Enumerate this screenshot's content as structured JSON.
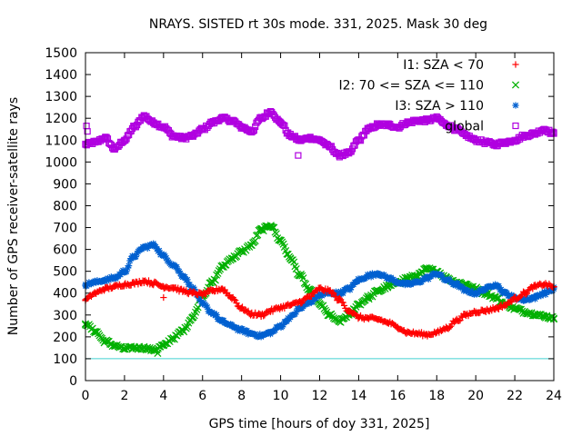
{
  "chart_data": {
    "type": "scatter",
    "title": "NRAYS. SISTED rt 30s mode. 331, 2025. Mask 30 deg",
    "xlabel": "GPS time [hours of doy 331, 2025]",
    "ylabel": "Number of GPS receiver-satellite rays",
    "xlim": [
      0,
      24
    ],
    "ylim": [
      0,
      1500
    ],
    "xticks": [
      0,
      2,
      4,
      6,
      8,
      10,
      12,
      14,
      16,
      18,
      20,
      22,
      24
    ],
    "yticks": [
      0,
      100,
      200,
      300,
      400,
      500,
      600,
      700,
      800,
      900,
      1000,
      1100,
      1200,
      1300,
      1400,
      1500
    ],
    "grid": false,
    "legend_position": "top-right",
    "reference_line": {
      "y": 100,
      "color": "#40d0d0"
    },
    "series": [
      {
        "name": "I1: SZA < 70",
        "marker": "+",
        "color": "#ff0000",
        "x": [
          0,
          0.5,
          1,
          1.5,
          2,
          2.5,
          3,
          3.5,
          4,
          4.5,
          5,
          5.5,
          6,
          6.5,
          7,
          7.5,
          8,
          8.5,
          9,
          9.5,
          10,
          10.5,
          11,
          11.5,
          12,
          12.5,
          13,
          13.5,
          14,
          14.5,
          15,
          15.5,
          16,
          16.5,
          17,
          17.5,
          18,
          18.5,
          19,
          19.5,
          20,
          20.5,
          21,
          21.5,
          22,
          22.5,
          23,
          23.5,
          24
        ],
        "values": [
          370,
          400,
          420,
          430,
          440,
          445,
          455,
          445,
          430,
          425,
          410,
          400,
          395,
          410,
          420,
          380,
          330,
          305,
          300,
          320,
          335,
          345,
          360,
          385,
          420,
          410,
          370,
          320,
          290,
          285,
          280,
          265,
          245,
          220,
          215,
          210,
          220,
          240,
          275,
          300,
          315,
          320,
          330,
          345,
          375,
          400,
          430,
          440,
          430
        ]
      },
      {
        "name": "I2: 70 <= SZA <= 110",
        "marker": "x",
        "color": "#00b000",
        "x": [
          0,
          0.5,
          1,
          1.5,
          2,
          2.5,
          3,
          3.5,
          4,
          4.5,
          5,
          5.5,
          6,
          6.5,
          7,
          7.5,
          8,
          8.5,
          9,
          9.5,
          10,
          10.5,
          11,
          11.5,
          12,
          12.5,
          13,
          13.5,
          14,
          14.5,
          15,
          15.5,
          16,
          16.5,
          17,
          17.5,
          18,
          18.5,
          19,
          19.5,
          20,
          20.5,
          21,
          21.5,
          22,
          22.5,
          23,
          23.5,
          24
        ],
        "values": [
          260,
          225,
          180,
          160,
          145,
          150,
          150,
          140,
          160,
          195,
          230,
          290,
          390,
          450,
          520,
          560,
          590,
          620,
          690,
          710,
          640,
          560,
          480,
          410,
          350,
          300,
          270,
          300,
          350,
          380,
          410,
          430,
          450,
          470,
          480,
          510,
          500,
          470,
          450,
          440,
          420,
          400,
          380,
          350,
          330,
          315,
          305,
          295,
          285
        ]
      },
      {
        "name": "I3: SZA > 110",
        "marker": "*",
        "color": "#0060d0",
        "x": [
          0,
          0.5,
          1,
          1.5,
          2,
          2.5,
          3,
          3.5,
          4,
          4.5,
          5,
          5.5,
          6,
          6.5,
          7,
          7.5,
          8,
          8.5,
          9,
          9.5,
          10,
          10.5,
          11,
          11.5,
          12,
          12.5,
          13,
          13.5,
          14,
          14.5,
          15,
          15.5,
          16,
          16.5,
          17,
          17.5,
          18,
          18.5,
          19,
          19.5,
          20,
          20.5,
          21,
          21.5,
          22,
          22.5,
          23,
          23.5,
          24
        ],
        "values": [
          440,
          450,
          460,
          470,
          500,
          570,
          610,
          620,
          570,
          530,
          480,
          420,
          350,
          310,
          270,
          250,
          230,
          215,
          205,
          220,
          250,
          290,
          330,
          360,
          390,
          400,
          400,
          420,
          460,
          480,
          490,
          470,
          450,
          440,
          450,
          470,
          490,
          460,
          440,
          410,
          400,
          420,
          440,
          400,
          380,
          370,
          380,
          400,
          420
        ]
      },
      {
        "name": "global",
        "marker": "square",
        "color": "#b000e0",
        "x": [
          0,
          0.5,
          1,
          1.5,
          2,
          2.5,
          3,
          3.5,
          4,
          4.5,
          5,
          5.5,
          6,
          6.5,
          7,
          7.5,
          8,
          8.5,
          9,
          9.5,
          10,
          10.5,
          11,
          11.5,
          12,
          12.5,
          13,
          13.5,
          14,
          14.5,
          15,
          15.5,
          16,
          16.5,
          17,
          17.5,
          18,
          18.5,
          19,
          19.5,
          20,
          20.5,
          21,
          21.5,
          22,
          22.5,
          23,
          23.5,
          24
        ],
        "values": [
          1080,
          1090,
          1110,
          1060,
          1100,
          1160,
          1210,
          1180,
          1160,
          1120,
          1110,
          1120,
          1150,
          1180,
          1200,
          1190,
          1160,
          1140,
          1200,
          1230,
          1180,
          1120,
          1100,
          1110,
          1100,
          1070,
          1030,
          1040,
          1100,
          1150,
          1170,
          1170,
          1160,
          1180,
          1190,
          1190,
          1200,
          1170,
          1150,
          1120,
          1100,
          1090,
          1080,
          1090,
          1100,
          1120,
          1130,
          1150,
          1130
        ]
      }
    ],
    "outliers": [
      {
        "series": "I1: SZA < 70",
        "x": 4.0,
        "value": 380
      },
      {
        "series": "I1: SZA < 70",
        "x": 7.1,
        "value": 410
      },
      {
        "series": "I2: 70 <= SZA <= 110",
        "x": 3.7,
        "value": 125
      },
      {
        "series": "global",
        "x": 0.05,
        "value": 1165
      },
      {
        "series": "global",
        "x": 0.1,
        "value": 1140
      },
      {
        "series": "global",
        "x": 10.9,
        "value": 1030
      }
    ]
  }
}
